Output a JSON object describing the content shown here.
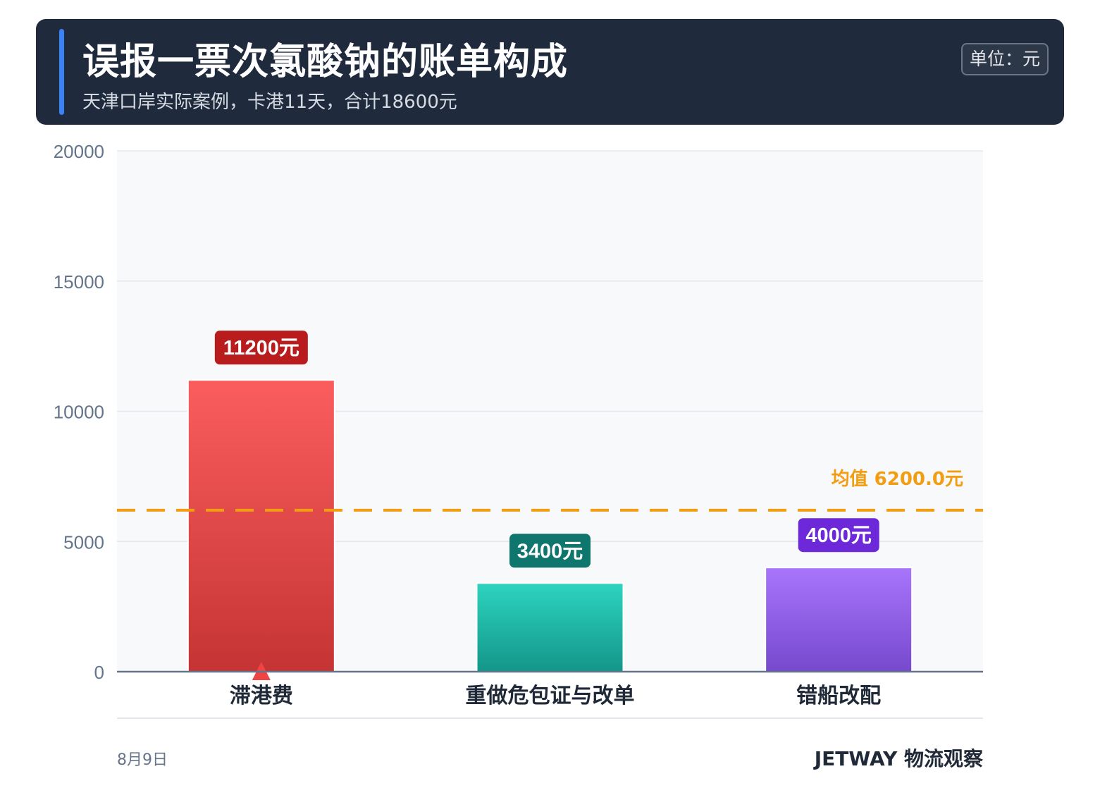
{
  "header": {
    "title": "误报一票次氯酸钠的账单构成",
    "subtitle": "天津口岸实际案例，卡港11天，合计18600元",
    "unit_label": "单位：元"
  },
  "chart_data": {
    "type": "bar",
    "categories": [
      "滞港费",
      "重做危包证与改单",
      "错船改配"
    ],
    "values": [
      11200,
      3400,
      4000
    ],
    "data_labels": [
      "11200元",
      "3400元",
      "4000元"
    ],
    "y_ticks": [
      "0",
      "5000",
      "10000",
      "15000",
      "20000"
    ],
    "ylim": [
      0,
      20000
    ],
    "grid": true,
    "mean_line": {
      "value": 6200,
      "label": "均值 6200.0元",
      "color": "#f29d12"
    },
    "highlight_marker": {
      "category": "滞港费",
      "color": "#ef4444"
    },
    "bar_colors": [
      {
        "top": "#fb5d5d",
        "bottom": "#c53434",
        "label_bg": "#b91c1c"
      },
      {
        "top": "#2dd4bf",
        "bottom": "#13968a",
        "label_bg": "#0f766e"
      },
      {
        "top": "#a875fb",
        "bottom": "#7649cd",
        "label_bg": "#6d28d9"
      }
    ]
  },
  "footer": {
    "date": "8月9日",
    "brand": "JETWAY 物流观察"
  }
}
